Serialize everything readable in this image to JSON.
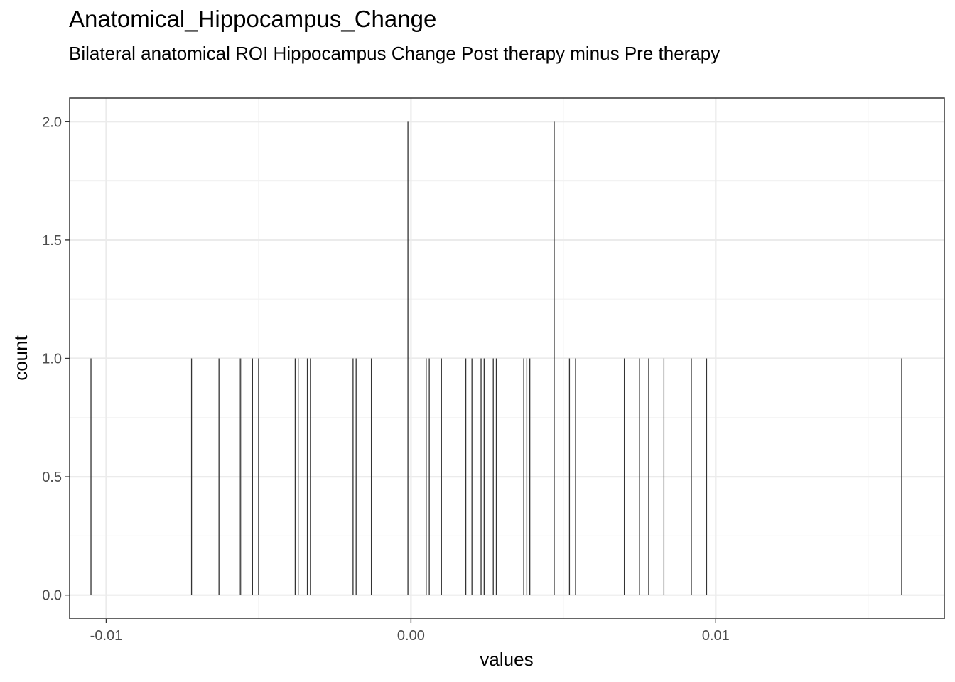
{
  "chart_data": {
    "type": "bar",
    "title": "Anatomical_Hippocampus_Change",
    "subtitle": "Bilateral anatomical ROI Hippocampus Change Post therapy minus Pre therapy",
    "xlabel": "values",
    "ylabel": "count",
    "xlim": [
      -0.0112,
      0.0175
    ],
    "ylim": [
      -0.1,
      2.1
    ],
    "x_ticks": [
      -0.01,
      0.0,
      0.01
    ],
    "x_tick_labels": [
      "-0.01",
      "0.00",
      "0.01"
    ],
    "y_ticks": [
      0.0,
      0.5,
      1.0,
      1.5,
      2.0
    ],
    "y_tick_labels": [
      "0.0",
      "0.5",
      "1.0",
      "1.5",
      "2.0"
    ],
    "grid": true,
    "bars": [
      {
        "x": -0.0105,
        "count": 1
      },
      {
        "x": -0.0072,
        "count": 1
      },
      {
        "x": -0.0063,
        "count": 1
      },
      {
        "x": -0.0056,
        "count": 1
      },
      {
        "x": -0.00555,
        "count": 1
      },
      {
        "x": -0.0052,
        "count": 1
      },
      {
        "x": -0.005,
        "count": 1
      },
      {
        "x": -0.0038,
        "count": 1
      },
      {
        "x": -0.0037,
        "count": 1
      },
      {
        "x": -0.0034,
        "count": 1
      },
      {
        "x": -0.0033,
        "count": 1
      },
      {
        "x": -0.0019,
        "count": 1
      },
      {
        "x": -0.0018,
        "count": 1
      },
      {
        "x": -0.0013,
        "count": 1
      },
      {
        "x": -0.0001,
        "count": 2
      },
      {
        "x": 0.0005,
        "count": 1
      },
      {
        "x": 0.0006,
        "count": 1
      },
      {
        "x": 0.001,
        "count": 1
      },
      {
        "x": 0.0018,
        "count": 1
      },
      {
        "x": 0.002,
        "count": 1
      },
      {
        "x": 0.0023,
        "count": 1
      },
      {
        "x": 0.0024,
        "count": 1
      },
      {
        "x": 0.0027,
        "count": 1
      },
      {
        "x": 0.0028,
        "count": 1
      },
      {
        "x": 0.0037,
        "count": 1
      },
      {
        "x": 0.0038,
        "count": 1
      },
      {
        "x": 0.0039,
        "count": 1
      },
      {
        "x": 0.0047,
        "count": 2
      },
      {
        "x": 0.0052,
        "count": 1
      },
      {
        "x": 0.0054,
        "count": 1
      },
      {
        "x": 0.007,
        "count": 1
      },
      {
        "x": 0.0075,
        "count": 1
      },
      {
        "x": 0.0078,
        "count": 1
      },
      {
        "x": 0.0083,
        "count": 1
      },
      {
        "x": 0.0092,
        "count": 1
      },
      {
        "x": 0.0097,
        "count": 1
      },
      {
        "x": 0.0161,
        "count": 1
      }
    ]
  }
}
